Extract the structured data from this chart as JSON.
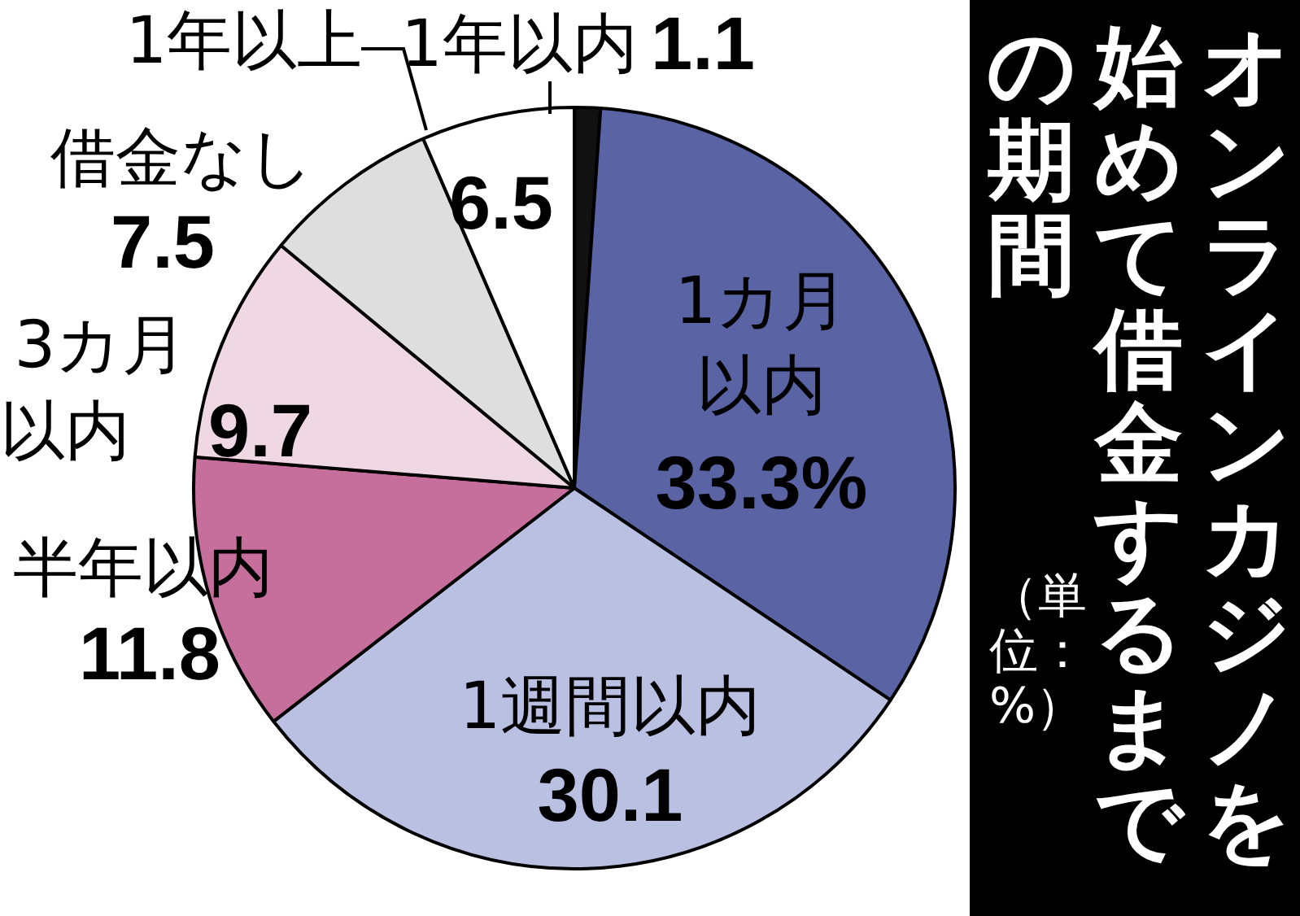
{
  "chart_data": {
    "type": "pie",
    "title": "オンラインカジノを始めて借金するまでの期間",
    "categories": [
      "1年以内",
      "1カ月以内",
      "1週間以内",
      "半年以内",
      "3カ月以内",
      "借金なし",
      "1年以上"
    ],
    "values": [
      1.1,
      33.3,
      30.1,
      11.8,
      9.7,
      7.5,
      6.5
    ],
    "colors": [
      "#111111",
      "#5a64a5",
      "#b9c0e2",
      "#c66e9c",
      "#efd7e4",
      "#dedede",
      "#ffffff"
    ],
    "value_labels": [
      "1.1",
      "33.3%",
      "30.1",
      "11.8",
      "9.7",
      "7.5",
      "6.5"
    ],
    "annotations": [
      "（単位：%）"
    ],
    "legend": false
  }
}
